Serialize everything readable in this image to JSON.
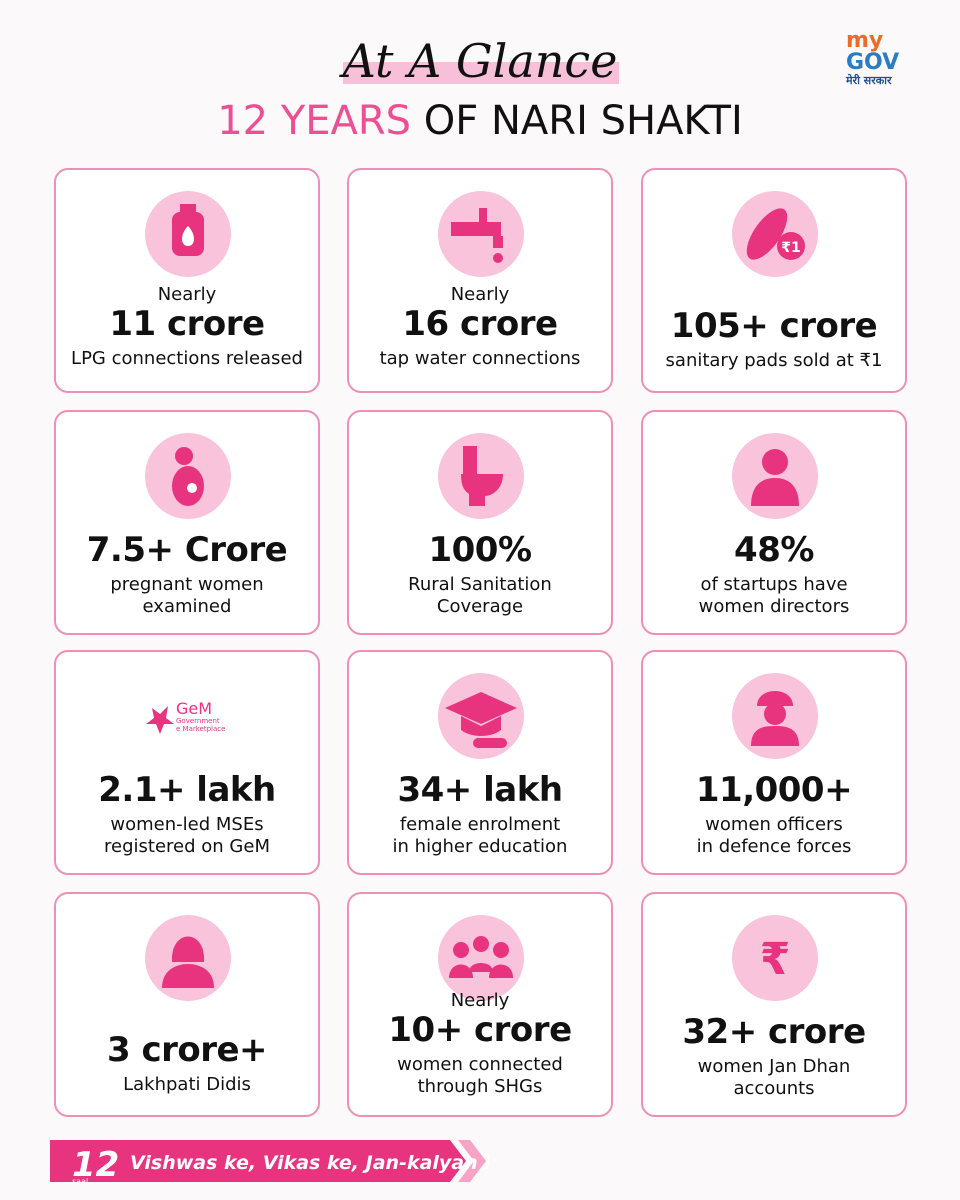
{
  "header": {
    "title": "At A Glance",
    "subtitle_highlight": "12 YEARS",
    "subtitle_rest": "OF NARI SHAKTI"
  },
  "logo": {
    "my": "my",
    "gov": "GOV",
    "tagline": "मेरी सरकार"
  },
  "cards": [
    {
      "prefix": "Nearly",
      "figure": "11 crore",
      "lines": [
        "LPG connections released"
      ]
    },
    {
      "prefix": "Nearly",
      "figure": "16 crore",
      "lines": [
        "tap water connections"
      ]
    },
    {
      "figure": "105+ crore",
      "lines": [
        "sanitary pads sold at ₹1"
      ],
      "icon_text": [
        "₹1"
      ]
    },
    {
      "figure": "7.5+ Crore",
      "lines": [
        "pregnant women",
        "examined"
      ]
    },
    {
      "figure": "100%",
      "lines": [
        "Rural Sanitation",
        "Coverage"
      ]
    },
    {
      "figure": "48%",
      "lines": [
        "of startups have",
        "women directors"
      ]
    },
    {
      "figure": "2.1+ lakh",
      "lines": [
        "women-led MSEs",
        "registered on GeM"
      ],
      "icon_text": [
        "GeM",
        "Government",
        "e Marketplace"
      ]
    },
    {
      "figure": "34+ lakh",
      "lines": [
        "female enrolment",
        "in higher education"
      ]
    },
    {
      "figure": "11,000+",
      "lines": [
        "women officers",
        "in defence forces"
      ]
    },
    {
      "figure": "3 crore+",
      "lines": [
        "Lakhpati Didis"
      ]
    },
    {
      "prefix": "Nearly",
      "figure": "10+ crore",
      "lines": [
        "women connected",
        "through SHGs"
      ]
    },
    {
      "figure": "32+ crore",
      "lines": [
        "women Jan Dhan",
        "accounts"
      ],
      "icon_text": [
        "₹"
      ]
    }
  ],
  "footer": {
    "number": "12",
    "saal": "saal",
    "slogan": "Vishwas ke, Vikas ke, Jan-kalyan ke"
  }
}
